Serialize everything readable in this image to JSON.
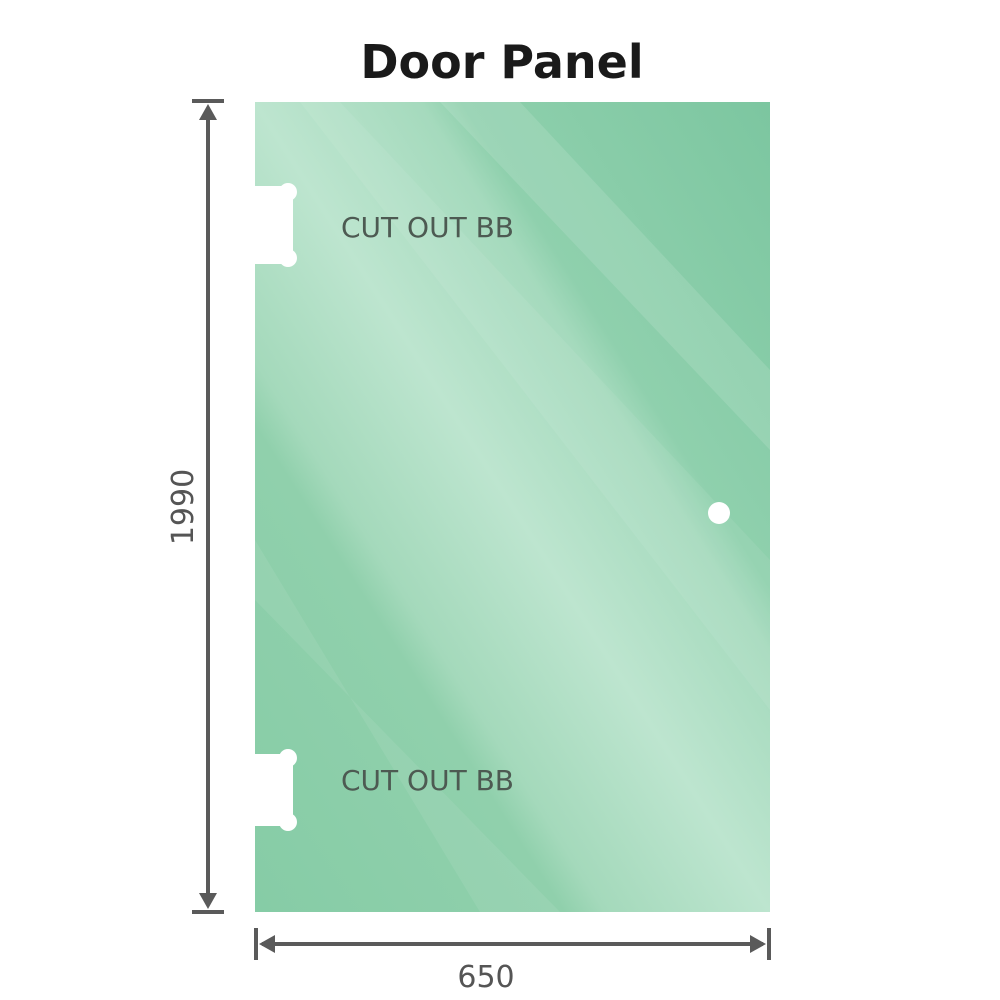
{
  "title": "Door Panel",
  "dimensions": {
    "height": "1990",
    "width": "650"
  },
  "cutouts": [
    {
      "label": "CUT OUT BB"
    },
    {
      "label": "CUT OUT BB"
    }
  ],
  "colors": {
    "glass": "#84cba5",
    "glass_light": "#bfe4d0",
    "dimension_line": "#5a5a5a",
    "text": "#4d5a52"
  }
}
